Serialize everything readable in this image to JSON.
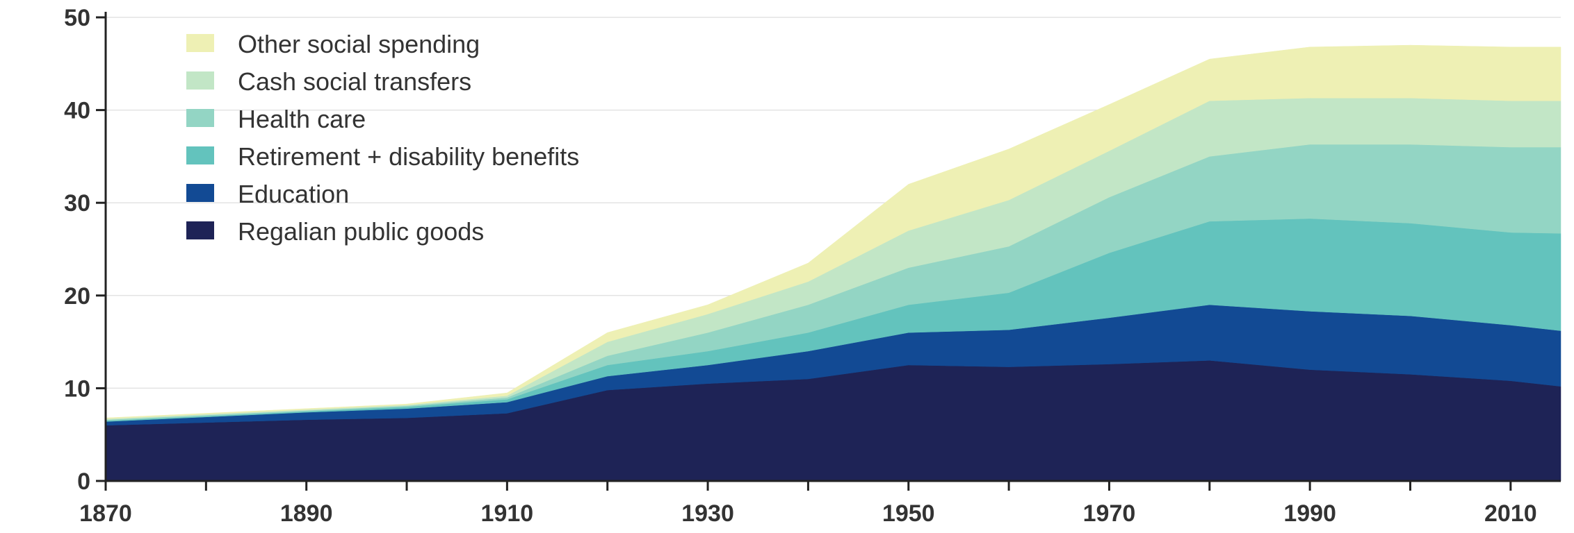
{
  "chart_data": {
    "type": "area",
    "stacked": true,
    "title": "",
    "xlabel": "",
    "ylabel": "",
    "xlim": [
      1870,
      2015
    ],
    "ylim": [
      0,
      50
    ],
    "grid": "horizontal",
    "legend_position": "top-left",
    "x_ticks": [
      1870,
      1890,
      1910,
      1930,
      1950,
      1970,
      1990,
      2010
    ],
    "y_ticks": [
      0,
      10,
      20,
      30,
      40,
      50
    ],
    "x": [
      1870,
      1880,
      1890,
      1900,
      1910,
      1920,
      1930,
      1940,
      1950,
      1960,
      1970,
      1980,
      1990,
      2000,
      2010,
      2015
    ],
    "series": [
      {
        "name": "Regalian public goods",
        "color": "#1e2356",
        "values": [
          6.0,
          6.3,
          6.6,
          6.8,
          7.3,
          9.8,
          10.5,
          11.0,
          12.5,
          12.3,
          12.6,
          13.0,
          12.0,
          11.5,
          10.8,
          10.2
        ]
      },
      {
        "name": "Education",
        "color": "#124a94",
        "values": [
          0.4,
          0.6,
          0.8,
          1.0,
          1.2,
          1.5,
          2.0,
          3.0,
          3.5,
          4.0,
          5.0,
          6.0,
          6.3,
          6.3,
          6.0,
          6.0
        ]
      },
      {
        "name": "Retirement + disability benefits",
        "color": "#63c3bd",
        "values": [
          0.1,
          0.1,
          0.1,
          0.2,
          0.3,
          1.2,
          1.5,
          2.0,
          3.0,
          4.0,
          7.0,
          9.0,
          10.0,
          10.0,
          10.0,
          10.5
        ]
      },
      {
        "name": "Health care",
        "color": "#93d5c4",
        "values": [
          0.1,
          0.1,
          0.1,
          0.1,
          0.2,
          1.0,
          2.0,
          3.0,
          4.0,
          5.0,
          6.0,
          7.0,
          8.0,
          8.5,
          9.2,
          9.3
        ]
      },
      {
        "name": "Cash social transfers",
        "color": "#c2e6c6",
        "values": [
          0.1,
          0.1,
          0.1,
          0.1,
          0.2,
          1.5,
          2.0,
          2.5,
          4.0,
          5.0,
          5.0,
          6.0,
          5.0,
          5.0,
          5.0,
          5.0
        ]
      },
      {
        "name": "Other social spending",
        "color": "#eef0b4",
        "values": [
          0.1,
          0.1,
          0.1,
          0.1,
          0.3,
          1.0,
          1.0,
          2.0,
          5.0,
          5.5,
          5.0,
          4.5,
          5.5,
          5.7,
          5.8,
          5.8
        ]
      }
    ]
  }
}
